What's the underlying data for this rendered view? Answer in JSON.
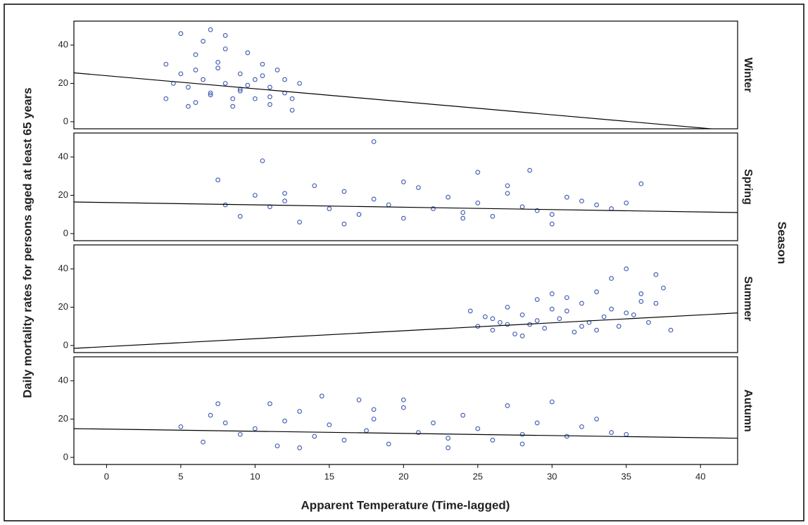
{
  "chart_data": {
    "type": "scatter",
    "x_label": "Apparent Temperature (Time-lagged)",
    "y_label": "Daily mortality rates for persons aged at least 65 years",
    "facet_label": "Season",
    "xlim": [
      -2.2,
      42.5
    ],
    "xticks": [
      0,
      5,
      10,
      15,
      20,
      25,
      30,
      35,
      40
    ],
    "ylim": [
      -3.7,
      52.5
    ],
    "yticks": [
      0,
      20,
      40
    ],
    "color": "#4a63b5",
    "line_color": "#000000",
    "panels": [
      {
        "name": "Winter",
        "x": [
          4,
          4,
          4.5,
          5,
          5,
          5.5,
          6,
          6,
          6.5,
          7,
          7,
          7.5,
          8,
          8,
          8.5,
          9,
          9,
          9.5,
          10,
          10,
          10.5,
          11,
          11,
          11.5,
          12,
          12,
          12.5,
          13,
          5.5,
          6.5,
          7.5,
          8.5,
          9.5,
          10.5,
          7,
          8,
          6,
          9,
          11,
          12.5
        ],
        "y": [
          12,
          30,
          20,
          25,
          46,
          18,
          10,
          35,
          22,
          48,
          15,
          28,
          20,
          38,
          8,
          25,
          16,
          36,
          12,
          22,
          30,
          18,
          9,
          27,
          15,
          22,
          12,
          20,
          8,
          42,
          31,
          12,
          19,
          24,
          14,
          45,
          27,
          17,
          13,
          6
        ],
        "fit": {
          "x": [
            -2.2,
            42.5
          ],
          "y": [
            25.5,
            -4.9
          ]
        }
      },
      {
        "name": "Spring",
        "x": [
          7.5,
          8,
          9,
          10,
          10.5,
          11,
          12,
          13,
          14,
          15,
          16,
          17,
          18,
          18,
          19,
          20,
          21,
          22,
          23,
          24,
          25,
          25,
          26,
          27,
          28,
          28.5,
          29,
          30,
          31,
          32,
          33,
          34,
          35,
          36,
          12,
          16,
          20,
          24,
          27,
          30
        ],
        "y": [
          28,
          15,
          9,
          20,
          38,
          14,
          17,
          6,
          25,
          13,
          22,
          10,
          48,
          18,
          15,
          8,
          24,
          13,
          19,
          11,
          32,
          16,
          9,
          21,
          14,
          33,
          12,
          5,
          19,
          17,
          15,
          13,
          16,
          26,
          21,
          5,
          27,
          8,
          25,
          10
        ],
        "fit": {
          "x": [
            -2.2,
            42.5
          ],
          "y": [
            16.5,
            11
          ]
        }
      },
      {
        "name": "Summer",
        "x": [
          24.5,
          25,
          25.5,
          26,
          26.5,
          27,
          27.5,
          28,
          28.5,
          29,
          29.5,
          30,
          30.5,
          31,
          31.5,
          32,
          32.5,
          33,
          33.5,
          34,
          34.5,
          35,
          35.5,
          36,
          36.5,
          37,
          37.5,
          38,
          26,
          28,
          30,
          32,
          34,
          36,
          29,
          31,
          33,
          35,
          37,
          27
        ],
        "y": [
          18,
          10,
          15,
          8,
          12,
          20,
          6,
          16,
          11,
          24,
          9,
          27,
          14,
          18,
          7,
          22,
          12,
          28,
          15,
          19,
          10,
          40,
          16,
          23,
          12,
          37,
          30,
          8,
          14,
          5,
          19,
          10,
          35,
          27,
          13,
          25,
          8,
          17,
          22,
          11
        ],
        "fit": {
          "x": [
            -2.2,
            42.5
          ],
          "y": [
            -1.5,
            17
          ]
        }
      },
      {
        "name": "Autumn",
        "x": [
          5,
          6.5,
          7,
          7.5,
          8,
          9,
          10,
          11,
          11.5,
          12,
          13,
          14,
          14.5,
          15,
          16,
          17,
          17.5,
          18,
          19,
          20,
          21,
          22,
          23,
          24,
          25,
          26,
          27,
          28,
          29,
          30,
          31,
          32,
          33,
          34,
          35,
          13,
          18,
          23,
          28,
          20
        ],
        "y": [
          16,
          8,
          22,
          28,
          18,
          12,
          15,
          28,
          6,
          19,
          24,
          11,
          32,
          17,
          9,
          30,
          14,
          20,
          7,
          26,
          13,
          18,
          10,
          22,
          15,
          9,
          27,
          12,
          18,
          29,
          11,
          16,
          20,
          13,
          12,
          5,
          25,
          5,
          7,
          30
        ],
        "fit": {
          "x": [
            -2.2,
            42.5
          ],
          "y": [
            15,
            10
          ]
        }
      }
    ]
  }
}
